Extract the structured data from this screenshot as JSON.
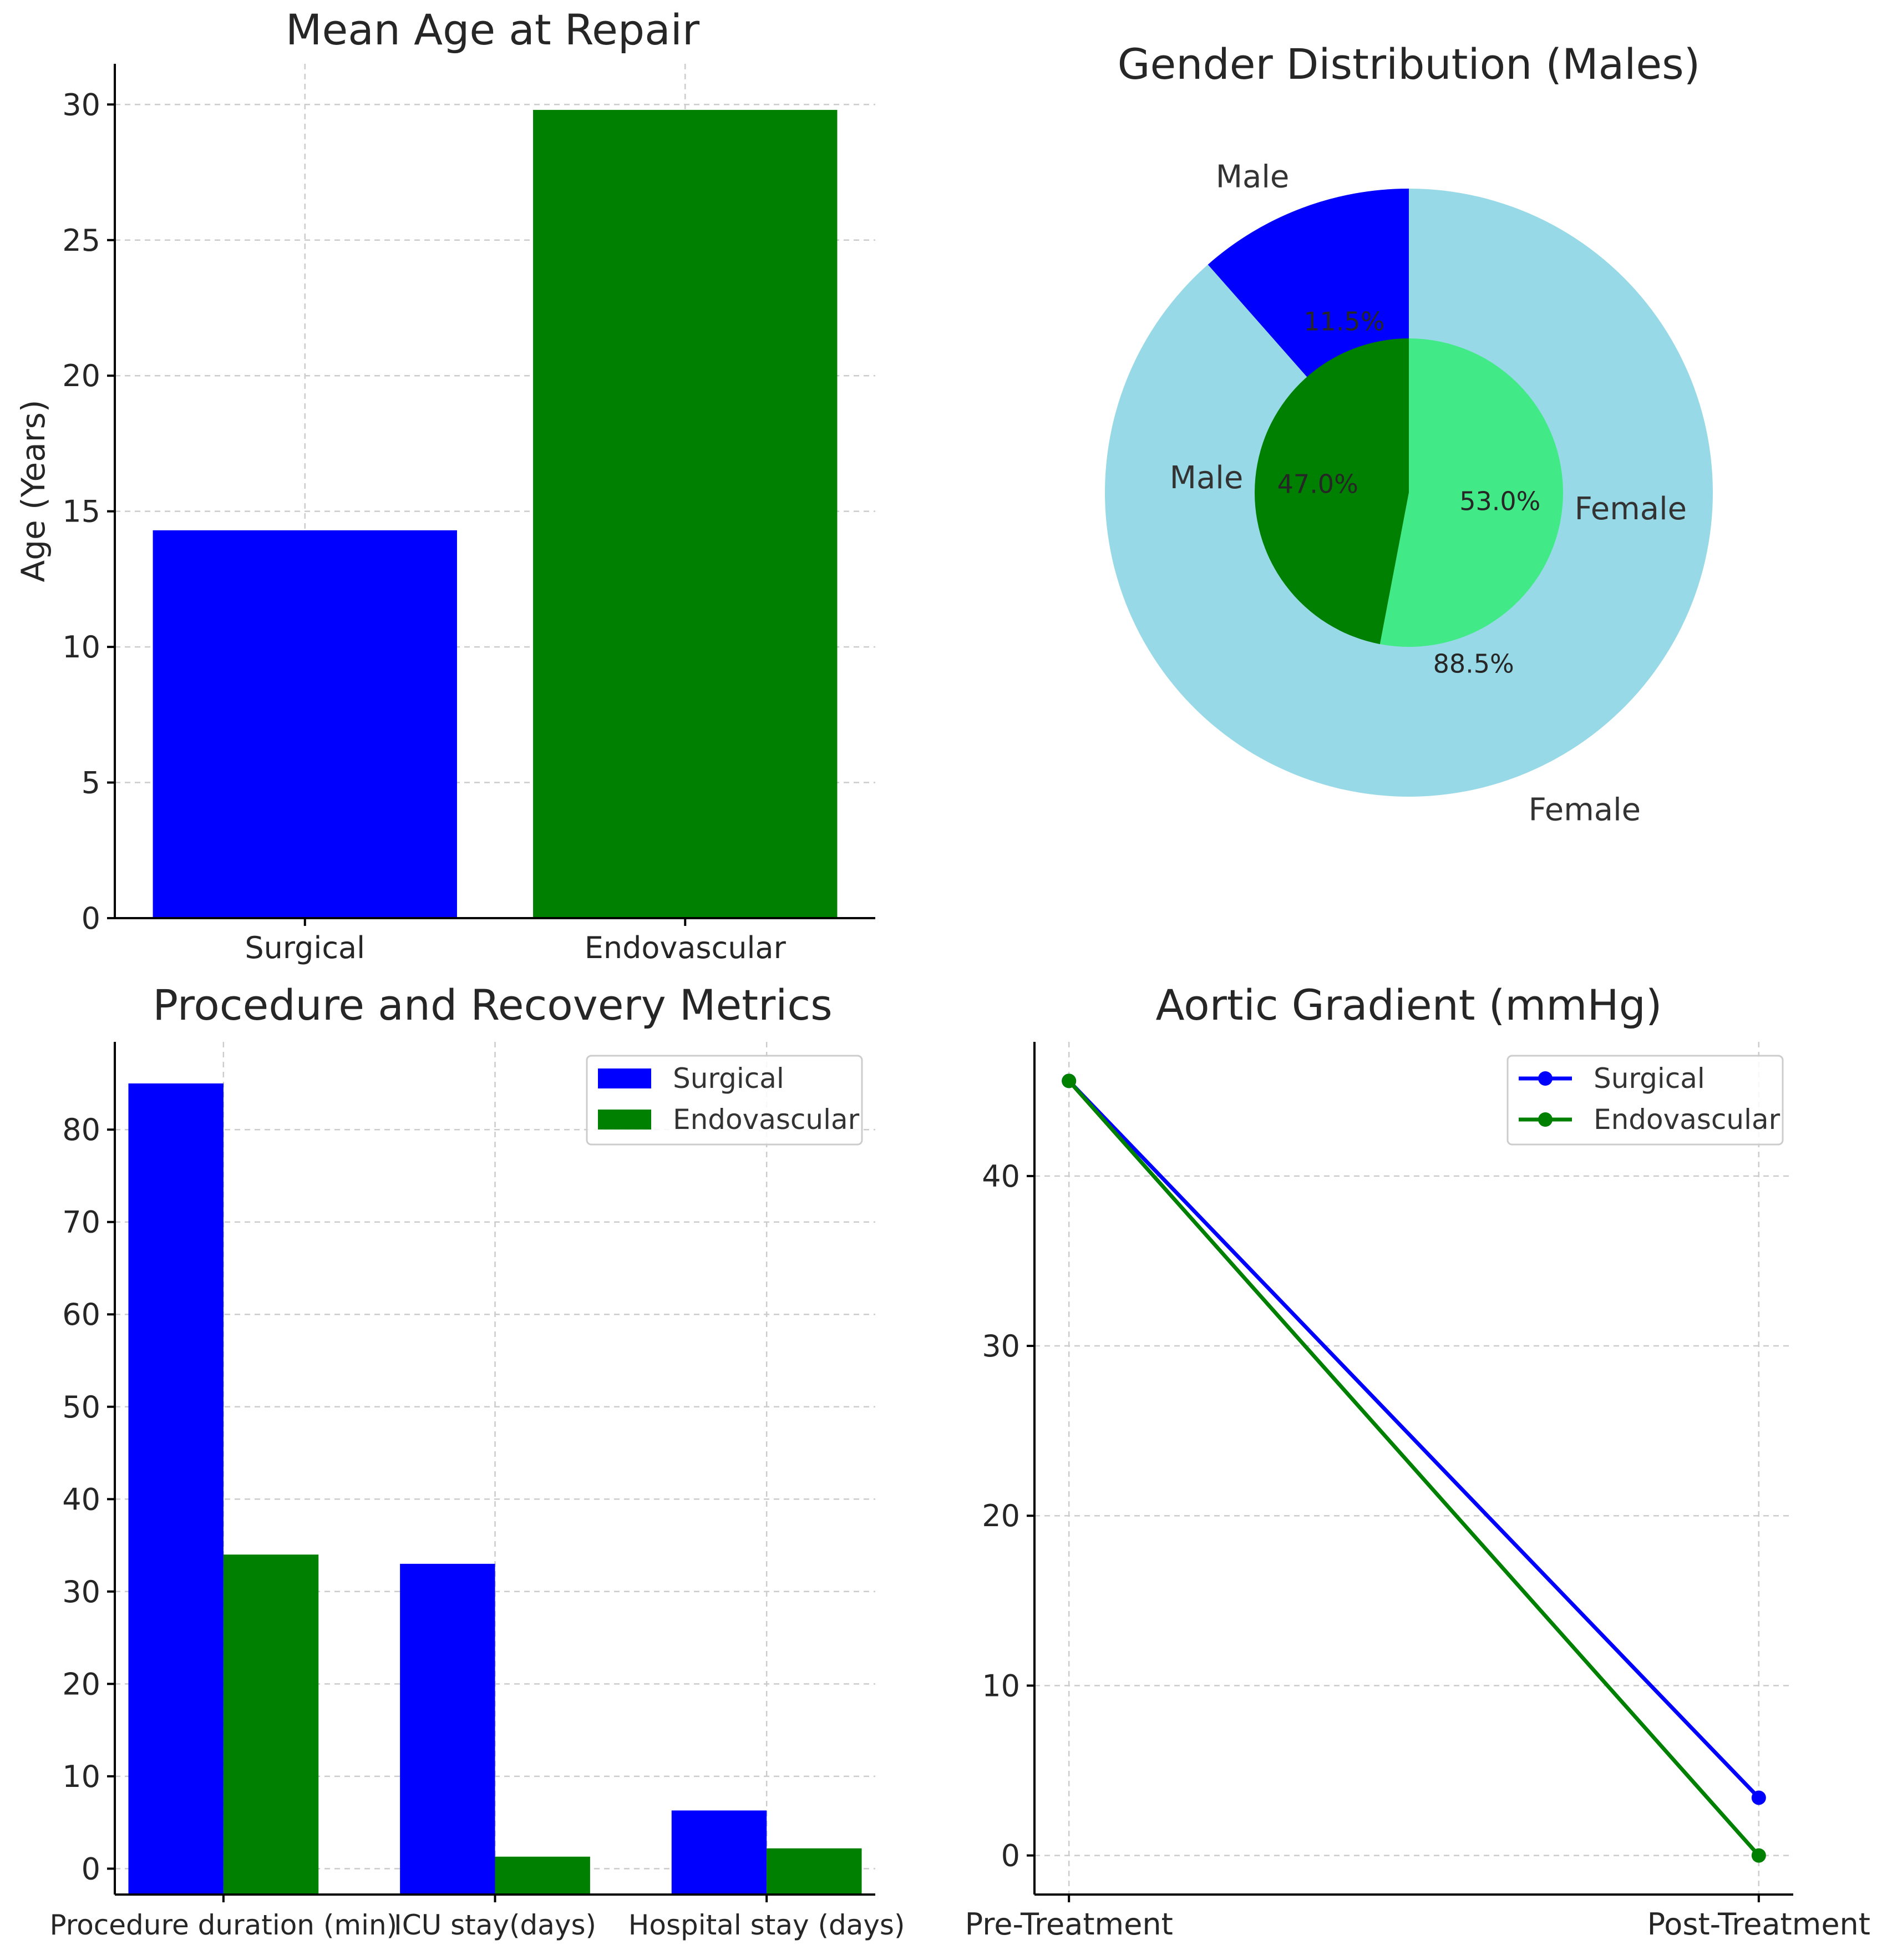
{
  "chart_data": [
    {
      "type": "bar",
      "title": "Mean Age at Repair",
      "ylabel": "Age (Years)",
      "xlabel": "",
      "categories": [
        "Surgical",
        "Endovascular"
      ],
      "values": [
        14.3,
        29.8
      ],
      "colors": [
        "#0000ff",
        "#008000"
      ],
      "ylim": [
        0,
        31.5
      ],
      "yticks": [
        0,
        5,
        10,
        15,
        20,
        25,
        30
      ],
      "grid": true
    },
    {
      "type": "pie",
      "title": "Gender Distribution (Males)",
      "outer": {
        "labels": [
          "Male",
          "Female"
        ],
        "values": [
          11.5,
          88.5
        ],
        "pct_labels": [
          "11.5%",
          "88.5%"
        ],
        "colors": [
          "#0000ff",
          "#97d9e6"
        ]
      },
      "inner": {
        "labels": [
          "Male",
          "Female"
        ],
        "values": [
          47.0,
          53.0
        ],
        "pct_labels": [
          "47.0%",
          "53.0%"
        ],
        "colors": [
          "#008000",
          "#41ea86"
        ]
      }
    },
    {
      "type": "bar",
      "title": "Procedure and Recovery Metrics",
      "categories": [
        "Procedure duration (min)",
        "ICU stay(days)",
        "Hospital stay (days)"
      ],
      "series": [
        {
          "name": "Surgical",
          "values": [
            85,
            33,
            6.3
          ],
          "color": "#0000ff"
        },
        {
          "name": "Endovascular",
          "values": [
            34,
            1.3,
            2.2
          ],
          "color": "#008000"
        }
      ],
      "ylim": [
        -2.8,
        89.5
      ],
      "yticks": [
        0,
        10,
        20,
        30,
        40,
        50,
        60,
        70,
        80
      ],
      "legend": "top-right",
      "grid": true
    },
    {
      "type": "line",
      "title": "Aortic Gradient (mmHg)",
      "x": [
        "Pre-Treatment",
        "Post-Treatment"
      ],
      "series": [
        {
          "name": "Surgical",
          "values": [
            45.6,
            3.4
          ],
          "color": "#0000ff"
        },
        {
          "name": "Endovascular",
          "values": [
            45.6,
            0.0
          ],
          "color": "#008000"
        }
      ],
      "ylim": [
        -2.3,
        47.9
      ],
      "yticks": [
        0,
        10,
        20,
        30,
        40
      ],
      "legend": "top-right",
      "grid": true
    }
  ]
}
